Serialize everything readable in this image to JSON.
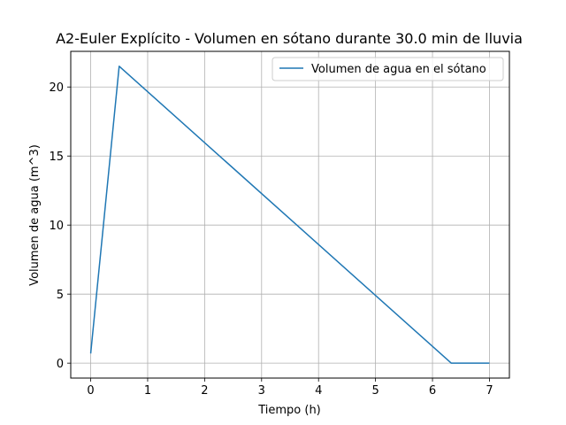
{
  "chart_data": {
    "type": "line",
    "title": "A2-Euler Explícito - Volumen en sótano durante 30.0 min de lluvia",
    "xlabel": "Tiempo (h)",
    "ylabel": "Volumen de agua (m^3)",
    "xlim": [
      -0.35,
      7.35
    ],
    "ylim": [
      -1.08,
      22.58
    ],
    "xticks": [
      0,
      1,
      2,
      3,
      4,
      5,
      6,
      7
    ],
    "yticks": [
      0,
      5,
      10,
      15,
      20
    ],
    "grid": true,
    "legend_position": "top-right",
    "series": [
      {
        "name": "Volumen de agua en el sótano",
        "color": "#1f77b4",
        "x": [
          0,
          0.5,
          6.33,
          7.0
        ],
        "y": [
          0.7,
          21.5,
          0,
          0
        ]
      }
    ]
  }
}
